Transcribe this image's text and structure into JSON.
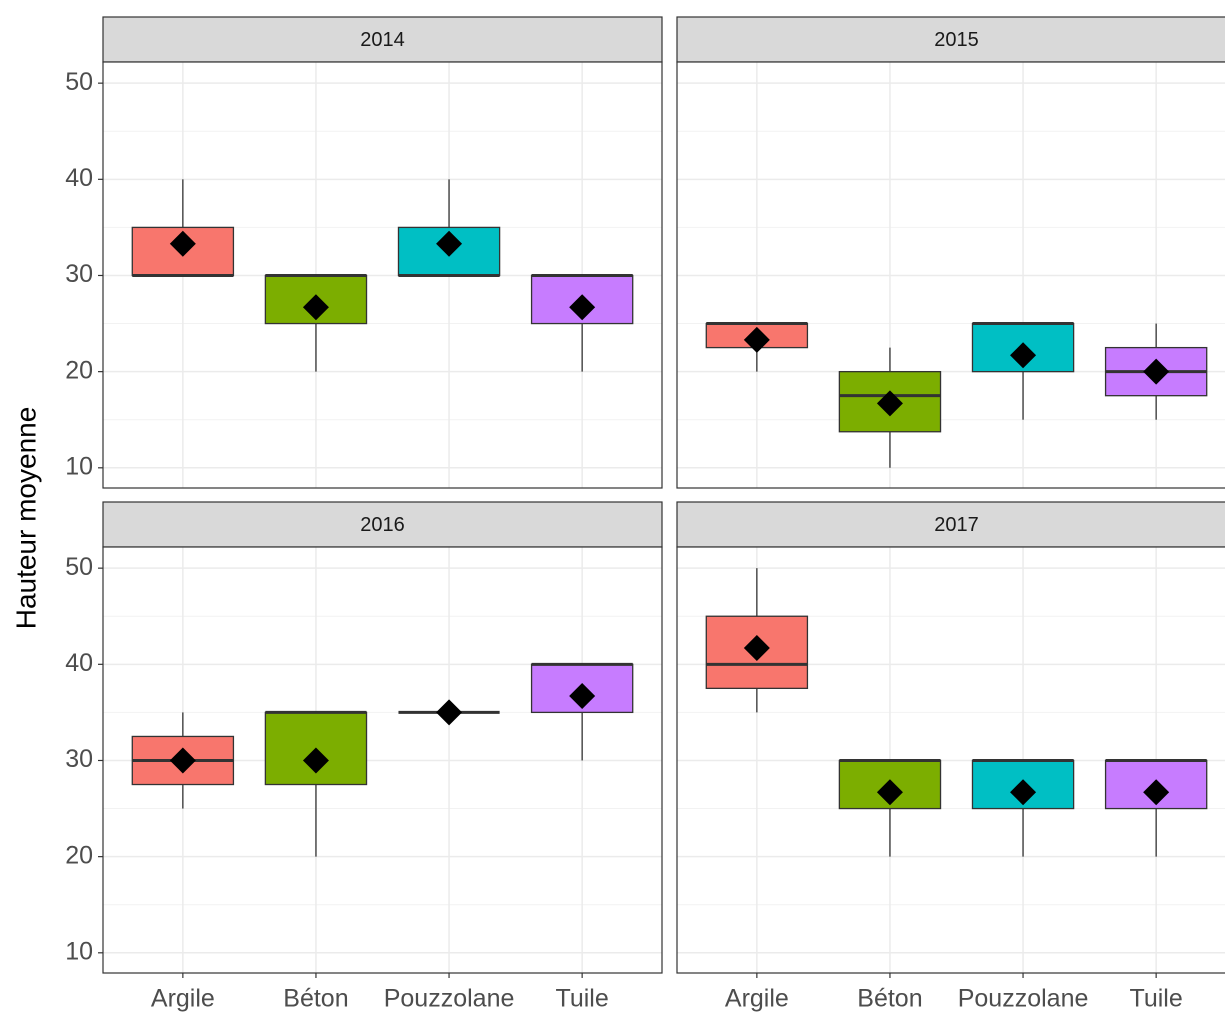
{
  "chart_data": {
    "type": "box",
    "ylabel": "Hauteur moyenne",
    "categories": [
      "Argile",
      "Béton",
      "Pouzzolane",
      "Tuile"
    ],
    "colors": [
      "#F8766D",
      "#7CAE00",
      "#00BFC4",
      "#C77CFF"
    ],
    "ylim": [
      7.9,
      52.2
    ],
    "yticks": [
      10,
      20,
      30,
      40,
      50
    ],
    "minor_yticks": [
      15,
      25,
      35,
      45
    ],
    "grid": true,
    "facets": [
      {
        "title": "2014",
        "boxes": [
          {
            "low": 30,
            "q1": 30,
            "median": 30,
            "q3": 35,
            "high": 40,
            "mean": 33.3
          },
          {
            "low": 20,
            "q1": 25,
            "median": 30,
            "q3": 30,
            "high": 30,
            "mean": 26.7
          },
          {
            "low": 30,
            "q1": 30,
            "median": 30,
            "q3": 35,
            "high": 40,
            "mean": 33.3
          },
          {
            "low": 20,
            "q1": 25,
            "median": 30,
            "q3": 30,
            "high": 30,
            "mean": 26.7
          }
        ]
      },
      {
        "title": "2015",
        "boxes": [
          {
            "low": 20,
            "q1": 22.5,
            "median": 25,
            "q3": 25,
            "high": 25,
            "mean": 23.3
          },
          {
            "low": 10,
            "q1": 13.75,
            "median": 17.5,
            "q3": 20,
            "high": 22.5,
            "mean": 16.7
          },
          {
            "low": 15,
            "q1": 20,
            "median": 25,
            "q3": 25,
            "high": 25,
            "mean": 21.7
          },
          {
            "low": 15,
            "q1": 17.5,
            "median": 20,
            "q3": 22.5,
            "high": 25,
            "mean": 20
          }
        ]
      },
      {
        "title": "2016",
        "boxes": [
          {
            "low": 25,
            "q1": 27.5,
            "median": 30,
            "q3": 32.5,
            "high": 35,
            "mean": 30
          },
          {
            "low": 20,
            "q1": 27.5,
            "median": 35,
            "q3": 35,
            "high": 35,
            "mean": 30
          },
          {
            "low": 35,
            "q1": 35,
            "median": 35,
            "q3": 35,
            "high": 35,
            "mean": 35
          },
          {
            "low": 30,
            "q1": 35,
            "median": 40,
            "q3": 40,
            "high": 40,
            "mean": 36.7
          }
        ]
      },
      {
        "title": "2017",
        "boxes": [
          {
            "low": 35,
            "q1": 37.5,
            "median": 40,
            "q3": 45,
            "high": 50,
            "mean": 41.7
          },
          {
            "low": 20,
            "q1": 25,
            "median": 30,
            "q3": 30,
            "high": 30,
            "mean": 26.7
          },
          {
            "low": 20,
            "q1": 25,
            "median": 30,
            "q3": 30,
            "high": 30,
            "mean": 26.7
          },
          {
            "low": 20,
            "q1": 25,
            "median": 30,
            "q3": 30,
            "high": 30,
            "mean": 26.7
          }
        ]
      }
    ]
  }
}
